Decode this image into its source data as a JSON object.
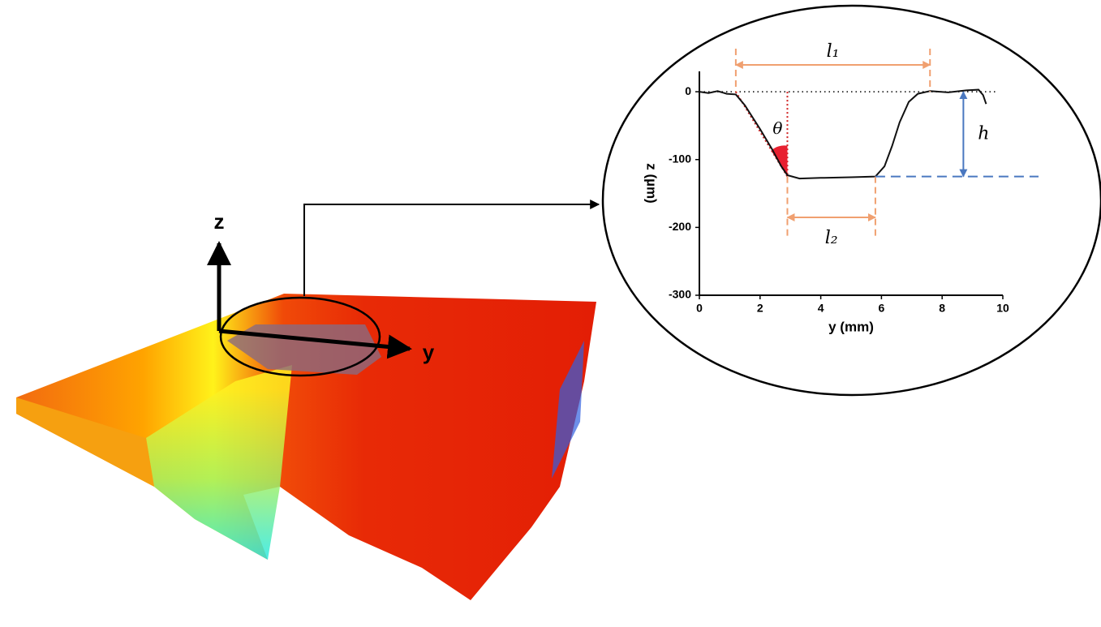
{
  "scene": {
    "z_axis": "z",
    "y_axis": "y"
  },
  "chart_data": {
    "type": "line",
    "x_label": "y (mm)",
    "y_label": "z (µm)",
    "xlim": [
      0,
      10
    ],
    "ylim": [
      -300,
      30
    ],
    "xticks": [
      0,
      2,
      4,
      6,
      8,
      10
    ],
    "yticks": [
      -300,
      -200,
      -100,
      0
    ],
    "series": [
      {
        "color": "#111111",
        "x": [
          0,
          0.3,
          0.6,
          0.9,
          1.2,
          1.5,
          2.0,
          2.4,
          2.7,
          2.9,
          3.3,
          4,
          5,
          5.8,
          6.1,
          6.35,
          6.6,
          6.9,
          7.2,
          7.6,
          8.2,
          8.8,
          9.2,
          9.35,
          9.45
        ],
        "values": [
          0,
          -2,
          1,
          -3,
          -4,
          -20,
          -55,
          -85,
          -110,
          -123,
          -128,
          -127,
          -126,
          -125,
          -110,
          -80,
          -45,
          -15,
          -3,
          1,
          -1,
          2,
          3,
          -5,
          -18
        ]
      }
    ],
    "annotations": {
      "l1": {
        "label": "l₁",
        "x": [
          1.2,
          7.6
        ]
      },
      "l2": {
        "label": "l₂",
        "x": [
          2.9,
          5.8
        ]
      },
      "h": {
        "label": "h",
        "x": 8.7,
        "y": [
          0,
          -125
        ]
      },
      "theta": {
        "label": "θ",
        "x": [
          1.2,
          2.9
        ],
        "y": [
          0,
          -125
        ]
      }
    }
  }
}
